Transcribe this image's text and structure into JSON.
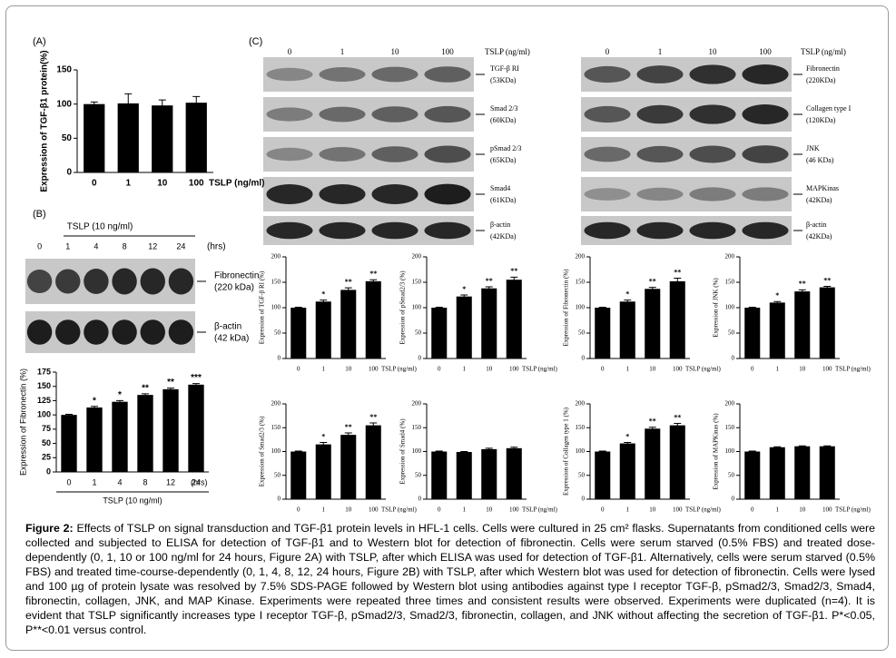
{
  "panel_labels": [
    "(A)",
    "(B)",
    "(C)"
  ],
  "blots": [
    {
      "header": "TSLP (10 ng/ml)",
      "lanes": [
        "0",
        "1",
        "4",
        "8",
        "12",
        "24"
      ],
      "unit": "(hrs)",
      "rows": [
        {
          "name": "Fibronectin",
          "size": "(220 kDa)"
        },
        {
          "name": "β-actin",
          "size": "(42 kDa)"
        }
      ]
    },
    {
      "header": "TSLP (ng/ml)",
      "lanes": [
        "0",
        "1",
        "10",
        "100"
      ],
      "rows": [
        {
          "name": "TGF-β RI",
          "size": "(53KDa)"
        },
        {
          "name": "Smad 2/3",
          "size": "(60KDa)"
        },
        {
          "name": "pSmad 2/3",
          "size": "(65KDa)"
        },
        {
          "name": "Smad4",
          "size": "(61KDa)"
        },
        {
          "name": "β-actin",
          "size": "(42KDa)"
        }
      ]
    },
    {
      "header": "TSLP (ng/ml)",
      "lanes": [
        "0",
        "1",
        "10",
        "100"
      ],
      "rows": [
        {
          "name": "Fibronectin",
          "size": "(220KDa)"
        },
        {
          "name": "Collagen type I",
          "size": "(120KDa)"
        },
        {
          "name": "JNK",
          "size": "(46 KDa)"
        },
        {
          "name": "MAPKinas",
          "size": "(42KDa)"
        },
        {
          "name": "β-actin",
          "size": "(42KDa)"
        }
      ]
    }
  ],
  "chart_data": [
    {
      "type": "bar",
      "y_label": "Expression of TGF-β1 protein(%)",
      "x_label": "TSLP (ng/ml)",
      "categories": [
        "0",
        "1",
        "10",
        "100"
      ],
      "values": [
        100,
        101,
        98,
        102
      ],
      "errors": [
        3,
        14,
        8,
        9
      ],
      "annotations": [
        null,
        null,
        null,
        null
      ],
      "color": "#000000",
      "ylim": [
        0,
        150
      ],
      "yticks": [
        0,
        50,
        100,
        150
      ]
    },
    {
      "type": "bar",
      "y_label": "Expression of Fibronectin (%)",
      "x_label": "TSLP (10 ng/ml)",
      "x_unit": "(hrs)",
      "categories": [
        "0",
        "1",
        "4",
        "8",
        "12",
        "24"
      ],
      "values": [
        100,
        113,
        123,
        135,
        145,
        153
      ],
      "errors": [
        1,
        2,
        2,
        2,
        2,
        2
      ],
      "annotations": [
        null,
        "*",
        "*",
        "**",
        "**",
        "***"
      ],
      "color": "#000000",
      "ylim": [
        0,
        175
      ],
      "yticks": [
        0,
        25,
        50,
        75,
        100,
        125,
        150,
        175
      ]
    },
    {
      "type": "bar",
      "y_label": "Expression of TGF-β RI (%)",
      "x_label": "TSLP (ng/ml)",
      "categories": [
        "0",
        "1",
        "10",
        "100"
      ],
      "values": [
        100,
        112,
        135,
        152
      ],
      "errors": [
        1,
        3,
        4,
        3
      ],
      "annotations": [
        null,
        "*",
        "**",
        "**"
      ],
      "color": "#000000",
      "ylim": [
        0,
        200
      ],
      "yticks": [
        0,
        50,
        100,
        150,
        200
      ]
    },
    {
      "type": "bar",
      "y_label": "Expression of pSmad2/3 (%)",
      "x_label": "TSLP (ng/ml)",
      "categories": [
        "0",
        "1",
        "10",
        "100"
      ],
      "values": [
        100,
        122,
        138,
        155
      ],
      "errors": [
        1,
        3,
        3,
        5
      ],
      "annotations": [
        null,
        "*",
        "**",
        "**"
      ],
      "color": "#000000",
      "ylim": [
        0,
        200
      ],
      "yticks": [
        0,
        50,
        100,
        150,
        200
      ]
    },
    {
      "type": "bar",
      "y_label": "Expression of Fibronectin (%)",
      "x_label": "TSLP (ng/ml)",
      "categories": [
        "0",
        "1",
        "10",
        "100"
      ],
      "values": [
        100,
        112,
        137,
        152
      ],
      "errors": [
        1,
        3,
        3,
        6
      ],
      "annotations": [
        null,
        "*",
        "**",
        "**"
      ],
      "color": "#000000",
      "ylim": [
        0,
        200
      ],
      "yticks": [
        0,
        50,
        100,
        150,
        200
      ]
    },
    {
      "type": "bar",
      "y_label": "Expression of JNK (%)",
      "x_label": "TSLP (ng/ml)",
      "categories": [
        "0",
        "1",
        "10",
        "100"
      ],
      "values": [
        100,
        110,
        132,
        140
      ],
      "errors": [
        1,
        2,
        3,
        2
      ],
      "annotations": [
        null,
        "*",
        "**",
        "**"
      ],
      "color": "#000000",
      "ylim": [
        0,
        200
      ],
      "yticks": [
        0,
        50,
        100,
        150,
        200
      ]
    },
    {
      "type": "bar",
      "y_label": "Expression of Smad2/3 (%)",
      "x_label": "TSLP (ng/ml)",
      "categories": [
        "0",
        "1",
        "10",
        "100"
      ],
      "values": [
        100,
        115,
        135,
        155
      ],
      "errors": [
        1,
        4,
        4,
        5
      ],
      "annotations": [
        null,
        "*",
        "**",
        "**"
      ],
      "color": "#000000",
      "ylim": [
        0,
        200
      ],
      "yticks": [
        0,
        50,
        100,
        150,
        200
      ]
    },
    {
      "type": "bar",
      "y_label": "Expression of Smad4 (%)",
      "x_label": "TSLP (ng/ml)",
      "categories": [
        "0",
        "1",
        "10",
        "100"
      ],
      "values": [
        100,
        99,
        105,
        107
      ],
      "errors": [
        1,
        1,
        2,
        2
      ],
      "annotations": [
        null,
        null,
        null,
        null
      ],
      "color": "#000000",
      "ylim": [
        0,
        200
      ],
      "yticks": [
        0,
        50,
        100,
        150,
        200
      ]
    },
    {
      "type": "bar",
      "y_label": "Expression of Collagen type 1 (%)",
      "x_label": "TSLP (ng/ml)",
      "categories": [
        "0",
        "1",
        "10",
        "100"
      ],
      "values": [
        100,
        117,
        148,
        155
      ],
      "errors": [
        1,
        2,
        3,
        4
      ],
      "annotations": [
        null,
        "*",
        "**",
        "**"
      ],
      "color": "#000000",
      "ylim": [
        0,
        200
      ],
      "yticks": [
        0,
        50,
        100,
        150,
        200
      ]
    },
    {
      "type": "bar",
      "y_label": "Expression of MAPKinas (%)",
      "x_label": "TSLP (ng/ml)",
      "categories": [
        "0",
        "1",
        "10",
        "100"
      ],
      "values": [
        100,
        109,
        111,
        111
      ],
      "errors": [
        1,
        1,
        1,
        1
      ],
      "annotations": [
        null,
        null,
        null,
        null
      ],
      "color": "#000000",
      "ylim": [
        0,
        200
      ],
      "yticks": [
        0,
        50,
        100,
        150,
        200
      ]
    }
  ],
  "caption": {
    "label": "Figure 2:",
    "text": "Effects of TSLP on signal transduction and TGF-β1 protein levels in HFL-1 cells. Cells were cultured in 25 cm² flasks. Supernatants from conditioned cells were collected and subjected to ELISA for detection of TGF-β1 and to Western blot for detection of fibronectin. Cells were serum starved (0.5% FBS) and treated dose-dependently (0, 1, 10 or 100 ng/ml for 24 hours, Figure 2A) with TSLP, after which ELISA was used for detection of TGF-β1. Alternatively, cells were serum starved (0.5% FBS) and treated time-course-dependently (0, 1, 4, 8, 12, 24 hours, Figure 2B) with TSLP, after which Western blot was used for detection of fibronectin. Cells were lysed and 100 µg of protein lysate was resolved by 7.5% SDS-PAGE followed by Western blot using antibodies against type I receptor TGF-β, pSmad2/3, Smad2/3, Smad4, fibronectin, collagen, JNK, and MAP Kinase. Experiments were repeated three times and consistent results were observed. Experiments were duplicated (n=4). It is evident that TSLP significantly increases type I receptor TGF-β, pSmad2/3, Smad2/3, fibronectin, collagen, and JNK without affecting the secretion of TGF-β1. P*<0.05, P**<0.01 versus control."
  }
}
